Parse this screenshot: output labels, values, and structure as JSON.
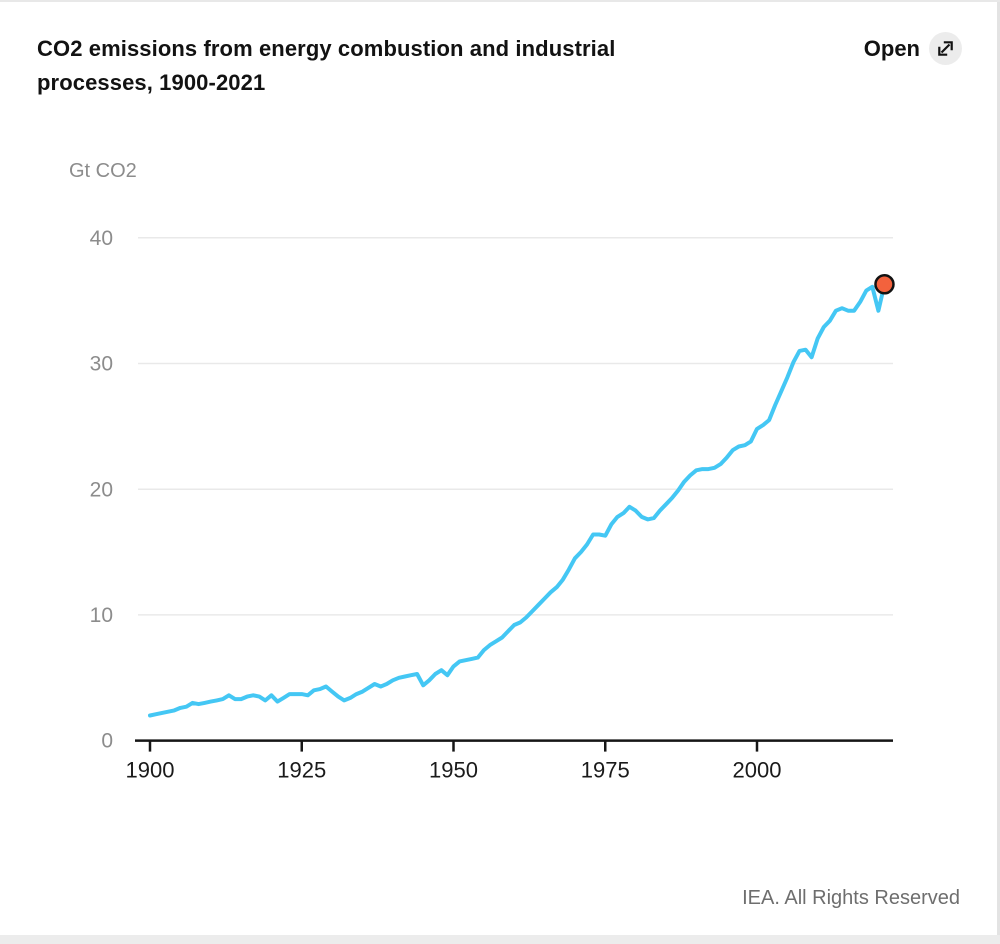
{
  "header": {
    "title_full": "CO2 emissions from energy combustion and industrial processes, 1900-2021",
    "title_lines": [
      "CO2 emissions from energy combustion and industrial",
      "processes, 1900-2021"
    ],
    "open_label": "Open"
  },
  "footer": {
    "credit": "IEA. All Rights Reserved"
  },
  "icons": {
    "open_expand": "expand-diagonal-arrow-icon"
  },
  "colors": {
    "series_line": "#44c7f4",
    "endpoint_fill": "#f3623d",
    "endpoint_stroke": "#121212",
    "grid": "#e9e9e9",
    "axis": "#161616",
    "y_label": "#8c8c8c",
    "x_label": "#1a1a1a",
    "icon_circle_bg": "#ececec"
  },
  "chart_data": {
    "type": "line",
    "title": "CO2 emissions from energy combustion and industrial processes, 1900-2021",
    "ylabel": "Gt CO2",
    "xlabel": "",
    "unit_label": "Gt CO2",
    "x_start": 1900,
    "x_end": 2021,
    "x_step": 1,
    "x_ticks": [
      1900,
      1925,
      1950,
      1975,
      2000
    ],
    "y_ticks": [
      0,
      10,
      20,
      30,
      40
    ],
    "ylim": [
      0,
      40
    ],
    "xlim": [
      1900,
      2022
    ],
    "grid": "horizontal",
    "legend": "none",
    "series": [
      {
        "name": "CO2 emissions from energy combustion and industrial processes",
        "unit": "Gt CO2",
        "values": [
          2.0,
          2.1,
          2.2,
          2.3,
          2.4,
          2.6,
          2.7,
          3.0,
          2.9,
          3.0,
          3.1,
          3.2,
          3.3,
          3.6,
          3.3,
          3.3,
          3.5,
          3.6,
          3.5,
          3.2,
          3.6,
          3.1,
          3.4,
          3.7,
          3.7,
          3.7,
          3.6,
          4.0,
          4.1,
          4.3,
          3.9,
          3.5,
          3.2,
          3.4,
          3.7,
          3.9,
          4.2,
          4.5,
          4.3,
          4.5,
          4.8,
          5.0,
          5.1,
          5.2,
          5.3,
          4.4,
          4.8,
          5.3,
          5.6,
          5.2,
          5.9,
          6.3,
          6.4,
          6.5,
          6.6,
          7.2,
          7.6,
          7.9,
          8.2,
          8.7,
          9.2,
          9.4,
          9.8,
          10.3,
          10.8,
          11.3,
          11.8,
          12.2,
          12.8,
          13.6,
          14.5,
          15.0,
          15.6,
          16.4,
          16.4,
          16.3,
          17.2,
          17.8,
          18.1,
          18.6,
          18.3,
          17.8,
          17.6,
          17.7,
          18.3,
          18.8,
          19.3,
          19.9,
          20.6,
          21.1,
          21.5,
          21.6,
          21.6,
          21.7,
          22.0,
          22.5,
          23.1,
          23.4,
          23.5,
          23.8,
          24.8,
          25.1,
          25.5,
          26.7,
          27.8,
          28.9,
          30.1,
          31.0,
          31.1,
          30.5,
          32.0,
          32.9,
          33.4,
          34.2,
          34.4,
          34.2,
          34.2,
          34.9,
          35.8,
          36.1,
          34.2,
          36.3
        ]
      }
    ],
    "endpoint_marker": {
      "year": 2021,
      "value": 36.3
    }
  }
}
